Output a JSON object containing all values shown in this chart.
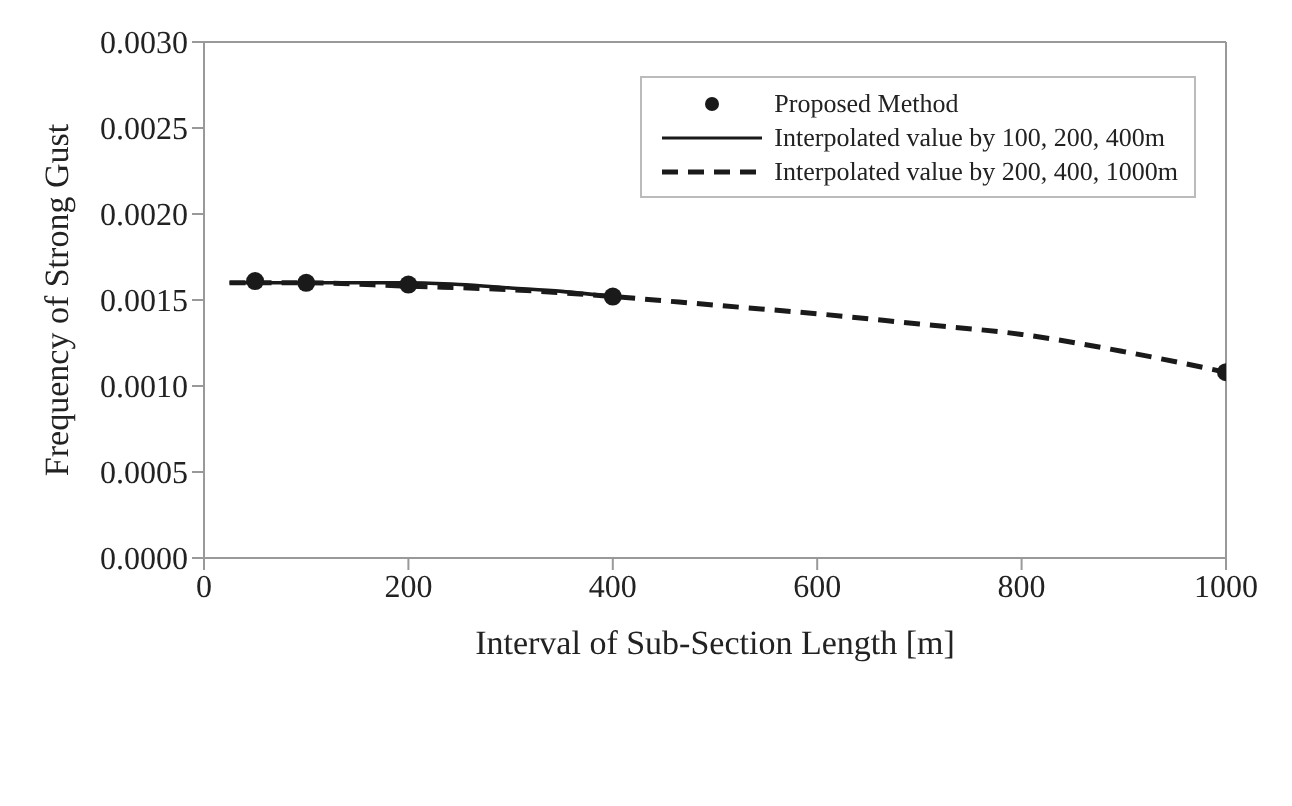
{
  "chart_data": {
    "type": "line",
    "xlabel": "Interval of Sub-Section Length [m]",
    "ylabel": "Frequency of Strong Gust",
    "xlim": [
      0,
      1000
    ],
    "xticks": [
      0,
      200,
      400,
      600,
      800,
      1000
    ],
    "ylim": [
      0,
      0.003
    ],
    "yticks": [
      {
        "value": 0,
        "label": "0.0000"
      },
      {
        "value": 0.0005,
        "label": "0.0005"
      },
      {
        "value": 0.001,
        "label": "0.0010"
      },
      {
        "value": 0.0015,
        "label": "0.0015"
      },
      {
        "value": 0.002,
        "label": "0.0020"
      },
      {
        "value": 0.0025,
        "label": "0.0025"
      },
      {
        "value": 0.003,
        "label": "0.0030"
      }
    ],
    "grid": false,
    "legend": "top right",
    "series": [
      {
        "name": "Proposed Method",
        "type": "scatter",
        "marker": "circle",
        "color": "#1a1a1a",
        "x": [
          50,
          100,
          200,
          400,
          1000
        ],
        "values": [
          0.00161,
          0.0016,
          0.00159,
          0.00152,
          0.00108
        ]
      },
      {
        "name": "Interpolated value by 100, 200, 400m",
        "marker": "none",
        "line_style": "solid",
        "color": "#1a1a1a",
        "x": [
          25,
          100,
          200,
          250,
          300,
          350,
          400
        ],
        "values": [
          0.0016,
          0.0016,
          0.0016,
          0.00159,
          0.00157,
          0.00155,
          0.00152
        ]
      },
      {
        "name": "Interpolated value by 200, 400, 1000m",
        "marker": "none",
        "line_style": "dashed",
        "color": "#1a1a1a",
        "x": [
          25,
          100,
          200,
          300,
          400,
          500,
          600,
          700,
          800,
          900,
          1000
        ],
        "values": [
          0.0016,
          0.0016,
          0.00158,
          0.00156,
          0.00152,
          0.00147,
          0.00142,
          0.00136,
          0.0013,
          0.0012,
          0.00108
        ]
      }
    ]
  }
}
